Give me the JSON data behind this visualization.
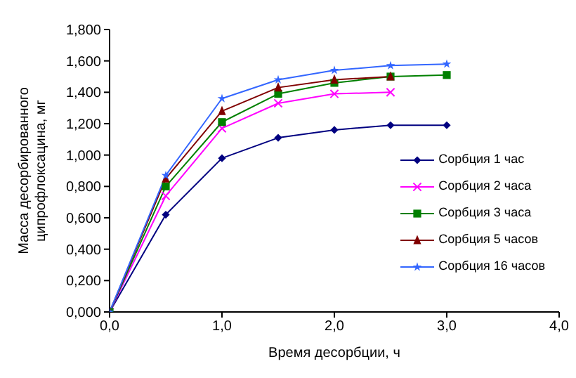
{
  "chart_data": {
    "type": "line",
    "xlabel": "Время десорбции, ч",
    "ylabel": "Масса десорбированного ципрофлоксацина, мг",
    "x": [
      0,
      0.5,
      1,
      1.5,
      2,
      2.5,
      3
    ],
    "xlim": [
      0,
      4
    ],
    "xticks": [
      {
        "value": 0,
        "label": "0,0"
      },
      {
        "value": 1,
        "label": "1,0"
      },
      {
        "value": 2,
        "label": "2,0"
      },
      {
        "value": 3,
        "label": "3,0"
      },
      {
        "value": 4,
        "label": "4,0"
      }
    ],
    "ylim": [
      0,
      1.8
    ],
    "yticks": [
      {
        "value": 0,
        "label": "0,000"
      },
      {
        "value": 0.2,
        "label": "0,200"
      },
      {
        "value": 0.4,
        "label": "0,400"
      },
      {
        "value": 0.6,
        "label": "0,600"
      },
      {
        "value": 0.8,
        "label": "0,800"
      },
      {
        "value": 1,
        "label": "1,000"
      },
      {
        "value": 1.2,
        "label": "1,200"
      },
      {
        "value": 1.4,
        "label": "1,400"
      },
      {
        "value": 1.6,
        "label": "1,600"
      },
      {
        "value": 1.8,
        "label": "1,800"
      }
    ],
    "grid": false,
    "legend": "right",
    "line_style": "solid",
    "series": [
      {
        "name": "Сорбция 1 час",
        "color": "#000080",
        "marker": "diamond",
        "values": [
          0,
          0.62,
          0.98,
          1.11,
          1.16,
          1.19,
          1.19
        ]
      },
      {
        "name": "Сорбция 2 часа",
        "color": "#ff00ff",
        "marker": "cross",
        "values": [
          0,
          0.74,
          1.17,
          1.33,
          1.39,
          1.4,
          null
        ]
      },
      {
        "name": "Сорбция 3 часа",
        "color": "#008000",
        "marker": "square",
        "values": [
          0,
          0.8,
          1.21,
          1.39,
          1.46,
          1.5,
          1.51
        ]
      },
      {
        "name": "Сорбция 5 часов",
        "color": "#800000",
        "marker": "triangle",
        "values": [
          0,
          0.85,
          1.28,
          1.43,
          1.48,
          1.5,
          null
        ]
      },
      {
        "name": "Сорбция 16 часов",
        "color": "#3366ff",
        "marker": "star",
        "values": [
          0,
          0.87,
          1.36,
          1.48,
          1.54,
          1.57,
          1.58
        ]
      }
    ]
  }
}
